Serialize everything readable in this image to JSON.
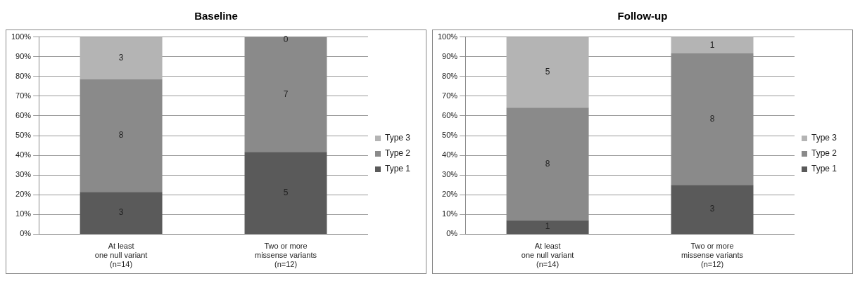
{
  "chart_data": [
    {
      "type": "bar",
      "title": "Baseline",
      "categories": [
        "At least\none null variant\n(n=14)",
        "Two or more\nmissense variants\n(n=12)"
      ],
      "stacked": true,
      "ylim": [
        0,
        100
      ],
      "yticks": [
        {
          "value": 0,
          "label": "0%"
        },
        {
          "value": 10,
          "label": "10%"
        },
        {
          "value": 20,
          "label": "20%"
        },
        {
          "value": 30,
          "label": "30%"
        },
        {
          "value": 40,
          "label": "40%"
        },
        {
          "value": 50,
          "label": "50%"
        },
        {
          "value": 60,
          "label": "60%"
        },
        {
          "value": 70,
          "label": "70%"
        },
        {
          "value": 80,
          "label": "80%"
        },
        {
          "value": 90,
          "label": "90%"
        },
        {
          "value": 100,
          "label": "100%"
        }
      ],
      "grid": "y",
      "legend": "right",
      "series": [
        {
          "name": "Type 1",
          "color": "#5a5a5a",
          "values": [
            21.4,
            41.7
          ]
        },
        {
          "name": "Type 2",
          "color": "#8a8a8a",
          "values": [
            57.1,
            58.3
          ]
        },
        {
          "name": "Type 3",
          "color": "#b4b4b4",
          "values": [
            21.4,
            0
          ]
        }
      ],
      "annotations": [
        "3",
        "8",
        "3",
        "5",
        "7",
        "0"
      ]
    },
    {
      "type": "bar",
      "title": "Follow-up",
      "categories": [
        "At least\none null variant\n(n=14)",
        "Two or more\nmissense variants\n(n=12)"
      ],
      "stacked": true,
      "ylim": [
        0,
        100
      ],
      "yticks": [
        {
          "value": 0,
          "label": "0%"
        },
        {
          "value": 10,
          "label": "10%"
        },
        {
          "value": 20,
          "label": "20%"
        },
        {
          "value": 30,
          "label": "30%"
        },
        {
          "value": 40,
          "label": "40%"
        },
        {
          "value": 50,
          "label": "50%"
        },
        {
          "value": 60,
          "label": "60%"
        },
        {
          "value": 70,
          "label": "70%"
        },
        {
          "value": 80,
          "label": "80%"
        },
        {
          "value": 90,
          "label": "90%"
        },
        {
          "value": 100,
          "label": "100%"
        }
      ],
      "grid": "y",
      "legend": "right",
      "series": [
        {
          "name": "Type 1",
          "color": "#5a5a5a",
          "values": [
            7.1,
            25
          ]
        },
        {
          "name": "Type 2",
          "color": "#8a8a8a",
          "values": [
            57.1,
            66.7
          ]
        },
        {
          "name": "Type 3",
          "color": "#b4b4b4",
          "values": [
            35.7,
            8.3
          ]
        }
      ],
      "annotations": [
        "1",
        "8",
        "5",
        "3",
        "8",
        "1"
      ]
    }
  ]
}
